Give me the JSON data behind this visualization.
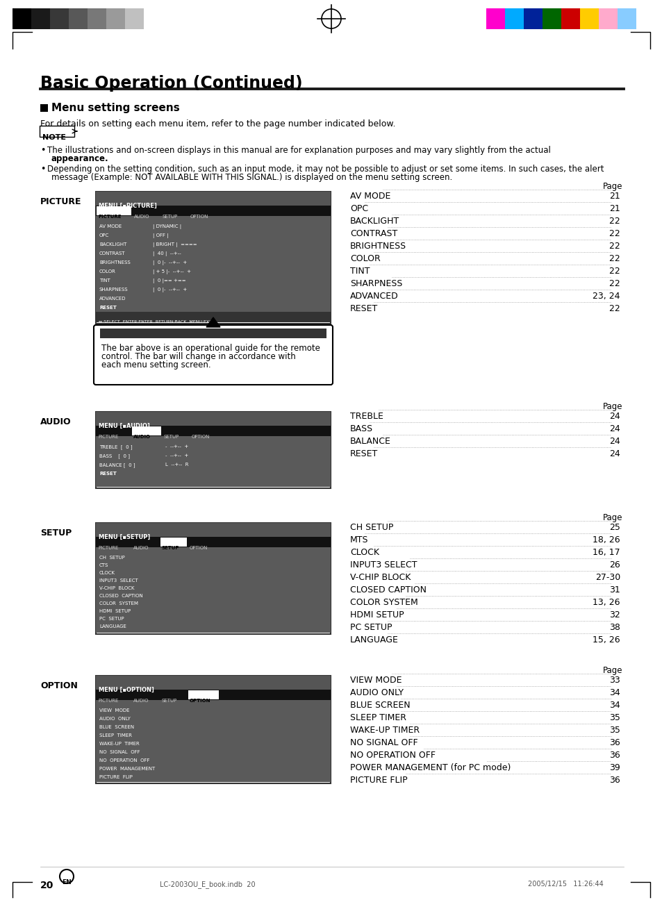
{
  "title": "Basic Operation (Continued)",
  "section_title": "Menu setting screens",
  "intro_text": "For details on setting each menu item, refer to the page number indicated below.",
  "picture_label": "PICTURE",
  "audio_label": "AUDIO",
  "setup_label": "SETUP",
  "option_label": "OPTION",
  "picture_items": [
    [
      "AV MODE",
      "21"
    ],
    [
      "OPC",
      "21"
    ],
    [
      "BACKLIGHT",
      " 22"
    ],
    [
      "CONTRAST",
      " 22"
    ],
    [
      "BRIGHTNESS",
      " 22"
    ],
    [
      "COLOR",
      " 22"
    ],
    [
      "TINT",
      " 22"
    ],
    [
      "SHARPNESS",
      " 22"
    ],
    [
      "ADVANCED",
      " 23, 24"
    ],
    [
      "RESET",
      " 22"
    ]
  ],
  "audio_items": [
    [
      "TREBLE",
      "24"
    ],
    [
      "BASS",
      "24"
    ],
    [
      "BALANCE",
      "24"
    ],
    [
      "RESET",
      "24"
    ]
  ],
  "setup_items": [
    [
      "CH SETUP ",
      "25"
    ],
    [
      "MTS",
      " 18, 26"
    ],
    [
      "CLOCK",
      "16, 17"
    ],
    [
      "INPUT3 SELECT",
      "26"
    ],
    [
      "V-CHIP BLOCK",
      " 27-30"
    ],
    [
      "CLOSED CAPTION",
      "31"
    ],
    [
      "COLOR SYSTEM ",
      "13, 26"
    ],
    [
      "HDMI SETUP",
      "32"
    ],
    [
      "PC SETUP ",
      "38"
    ],
    [
      "LANGUAGE",
      "15, 26"
    ]
  ],
  "option_items": [
    [
      "VIEW MODE ",
      "33"
    ],
    [
      "AUDIO ONLY",
      " 34"
    ],
    [
      "BLUE SCREEN ",
      " 34"
    ],
    [
      "SLEEP TIMER",
      " 35"
    ],
    [
      "WAKE-UP TIMER ",
      " 35"
    ],
    [
      "NO SIGNAL OFF",
      " 36"
    ],
    [
      "NO OPERATION OFF",
      " 36"
    ],
    [
      "POWER MANAGEMENT (for PC mode)",
      " 39"
    ],
    [
      "PICTURE FLIP",
      " 36"
    ]
  ],
  "bw_colors": [
    "#000000",
    "#1a1a1a",
    "#383838",
    "#585858",
    "#787878",
    "#9a9a9a",
    "#c0c0c0",
    "#ffffff"
  ],
  "rgb_colors": [
    "#ff00cc",
    "#00aaff",
    "#002299",
    "#006600",
    "#cc0000",
    "#ffcc00",
    "#ffaacc",
    "#88ccff"
  ]
}
